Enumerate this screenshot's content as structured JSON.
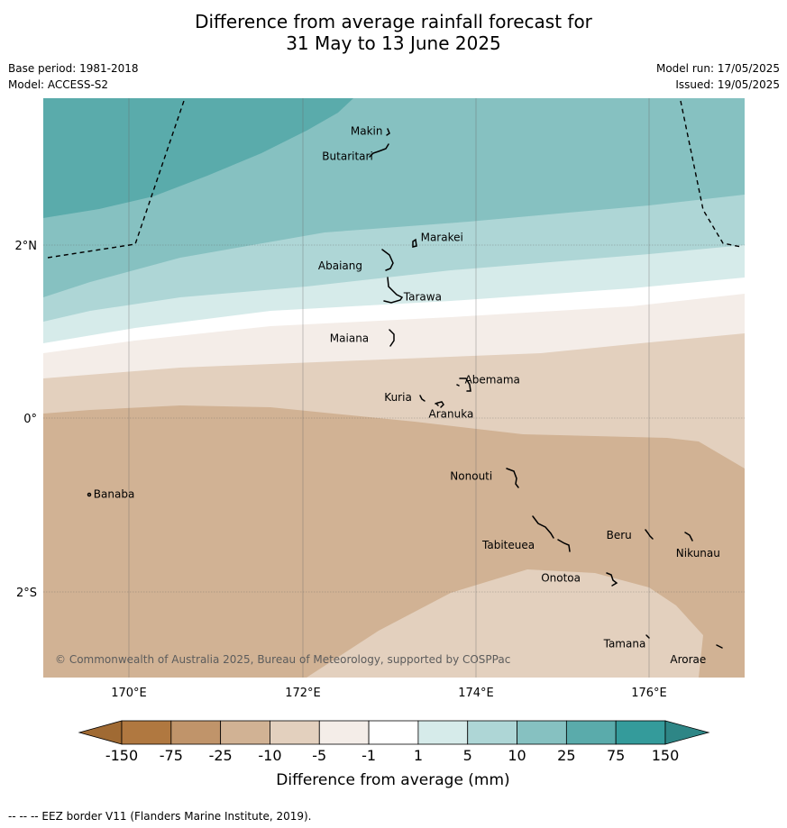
{
  "title_line1": "Difference from average rainfall forecast for",
  "title_line2": "31 May to 13 June 2025",
  "meta": {
    "base_period": "Base period: 1981-2018",
    "model": "Model: ACCESS-S2",
    "model_run": "Model run: 17/05/2025",
    "issued": "Issued: 19/05/2025"
  },
  "axes": {
    "lon_ticks": [
      "170°E",
      "172°E",
      "174°E",
      "176°E"
    ],
    "lat_ticks": [
      "2°N",
      "0°",
      "2°S"
    ]
  },
  "places": [
    {
      "name": "Makin",
      "lon": 172.95,
      "lat": 3.35
    },
    {
      "name": "Butaritari",
      "lon": 172.85,
      "lat": 3.1
    },
    {
      "name": "Marakei",
      "lon": 173.3,
      "lat": 2.0
    },
    {
      "name": "Abaiang",
      "lon": 172.95,
      "lat": 1.8
    },
    {
      "name": "Tarawa",
      "lon": 173.0,
      "lat": 1.42
    },
    {
      "name": "Maiana",
      "lon": 173.0,
      "lat": 0.9
    },
    {
      "name": "Abemama",
      "lon": 173.85,
      "lat": 0.4
    },
    {
      "name": "Kuria",
      "lon": 173.4,
      "lat": 0.22
    },
    {
      "name": "Aranuka",
      "lon": 173.6,
      "lat": 0.17
    },
    {
      "name": "Nonouti",
      "lon": 174.45,
      "lat": -0.67
    },
    {
      "name": "Banaba",
      "lon": 169.53,
      "lat": -0.88
    },
    {
      "name": "Tabiteuea",
      "lon": 174.8,
      "lat": -1.3
    },
    {
      "name": "Beru",
      "lon": 175.98,
      "lat": -1.33
    },
    {
      "name": "Nikunau",
      "lon": 176.45,
      "lat": -1.35
    },
    {
      "name": "Onotoa",
      "lon": 175.56,
      "lat": -1.8
    },
    {
      "name": "Tamana",
      "lon": 175.97,
      "lat": -2.5
    },
    {
      "name": "Arorae",
      "lon": 176.82,
      "lat": -2.64
    }
  ],
  "copyright": "© Commonwealth of Australia 2025, Bureau of Meteorology, supported by COSPPac",
  "colorbar": {
    "title": "Difference from average (mm)",
    "ticks": [
      "-150",
      "-75",
      "-25",
      "-10",
      "-5",
      "-1",
      "1",
      "5",
      "10",
      "25",
      "75",
      "150"
    ],
    "colors": [
      "#b07840",
      "#c0946a",
      "#d1b294",
      "#e3d0be",
      "#f4ede8",
      "#ffffff",
      "#d6ebea",
      "#aed6d6",
      "#86c1c1",
      "#5aabab",
      "#349b9b"
    ],
    "under_color": "#a06a33",
    "over_color": "#2e8686"
  },
  "footnote": "--  --  -- EEZ border V11 (Flanders Marine Institute, 2019)."
}
